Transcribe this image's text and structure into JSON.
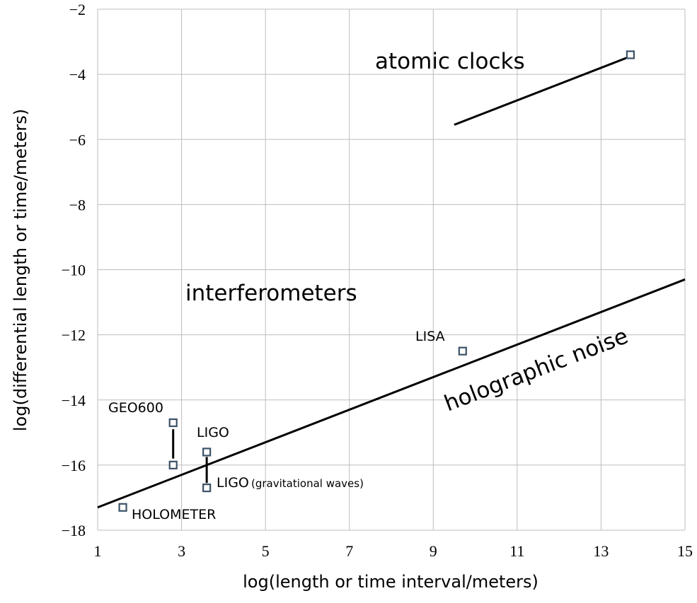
{
  "chart_data": {
    "type": "scatter",
    "xlabel": "log(length or time interval/meters)",
    "ylabel": "log(differential length or time/meters)",
    "xlim": [
      1,
      15
    ],
    "ylim": [
      -18,
      -2
    ],
    "x_ticks": [
      1,
      3,
      5,
      7,
      9,
      11,
      13,
      15
    ],
    "y_ticks": [
      -18,
      -16,
      -14,
      -12,
      -10,
      -8,
      -6,
      -4,
      -2
    ],
    "x_tick_labels": [
      "1",
      "3",
      "5",
      "7",
      "9",
      "11",
      "13",
      "15"
    ],
    "y_tick_labels": [
      "−18",
      "−16",
      "−14",
      "−12",
      "−10",
      "−8",
      "−6",
      "−4",
      "−2"
    ],
    "grid": true,
    "points": [
      {
        "label": "HOLOMETER",
        "x": 1.6,
        "y": -17.3
      },
      {
        "label": "GEO600",
        "x": 2.8,
        "y": -14.7
      },
      {
        "label": "",
        "x": 2.8,
        "y": -16.0
      },
      {
        "label": "LIGO",
        "x": 3.6,
        "y": -15.6
      },
      {
        "label": "LIGO",
        "x": 3.6,
        "y": -16.7
      },
      {
        "label": "LISA",
        "x": 9.7,
        "y": -12.5
      },
      {
        "label": "",
        "x": 13.7,
        "y": -3.4
      }
    ],
    "lines": [
      {
        "name": "holographic noise",
        "x": [
          1,
          15
        ],
        "y": [
          -17.3,
          -10.3
        ]
      },
      {
        "name": "atomic clocks",
        "x": [
          9.5,
          13.7
        ],
        "y": [
          -5.55,
          -3.45
        ]
      },
      {
        "name": "GEO600 range",
        "x": [
          2.8,
          2.8
        ],
        "y": [
          -14.9,
          -15.8
        ]
      },
      {
        "name": "LIGO range",
        "x": [
          3.6,
          3.6
        ],
        "y": [
          -15.75,
          -16.55
        ]
      }
    ],
    "annotations": {
      "atomic_clocks": "atomic clocks",
      "interferometers": "interferometers",
      "holographic_noise": "holographic noise",
      "geo600": "GEO600",
      "ligo": "LIGO",
      "ligo_gw_main": "LIGO",
      "ligo_gw_sub": "(gravitational waves)",
      "lisa": "LISA",
      "holometer": "HOLOMETER"
    }
  }
}
